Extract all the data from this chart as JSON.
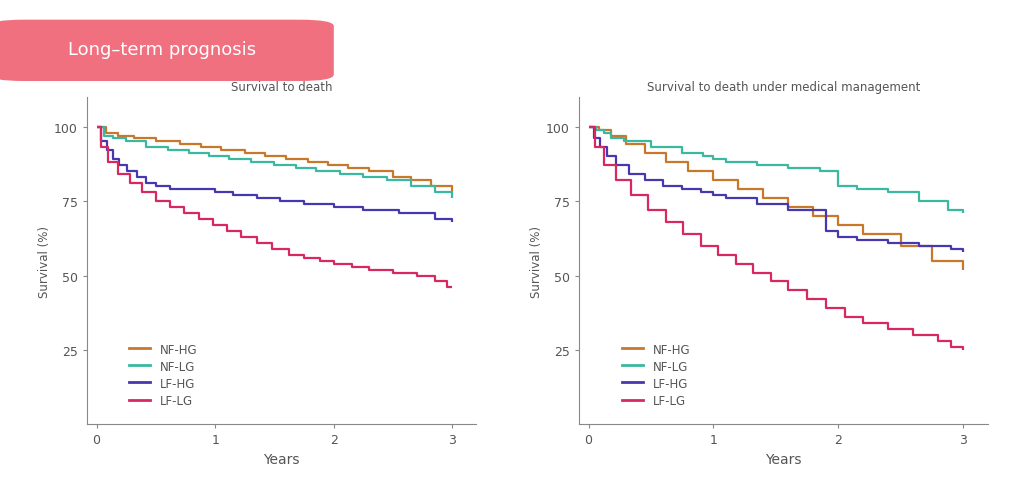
{
  "title_text": "Long–term prognosis",
  "title_bg_color": "#f07080",
  "title_text_color": "#ffffff",
  "background_color": "#ffffff",
  "chart1_title": "Survival to death",
  "chart2_title": "Survival to death under medical management",
  "xlabel": "Years",
  "ylabel": "Survival (%)",
  "colors": {
    "NF-HG": "#c8782a",
    "NF-LG": "#3ab8a0",
    "LF-HG": "#4838b0",
    "LF-LG": "#d82860"
  },
  "chart1": {
    "NF-HG": {
      "x": [
        0,
        0.08,
        0.18,
        0.32,
        0.5,
        0.7,
        0.88,
        1.05,
        1.25,
        1.42,
        1.6,
        1.78,
        1.95,
        2.12,
        2.3,
        2.5,
        2.65,
        2.82,
        3.0
      ],
      "y": [
        100,
        98,
        97,
        96,
        95,
        94,
        93,
        92,
        91,
        90,
        89,
        88,
        87,
        86,
        85,
        83,
        82,
        80,
        78
      ]
    },
    "NF-LG": {
      "x": [
        0,
        0.06,
        0.14,
        0.25,
        0.42,
        0.6,
        0.78,
        0.95,
        1.12,
        1.3,
        1.5,
        1.68,
        1.85,
        2.05,
        2.25,
        2.45,
        2.65,
        2.85,
        3.0
      ],
      "y": [
        100,
        97,
        96,
        95,
        93,
        92,
        91,
        90,
        89,
        88,
        87,
        86,
        85,
        84,
        83,
        82,
        80,
        78,
        76
      ]
    },
    "LF-HG": {
      "x": [
        0,
        0.04,
        0.09,
        0.14,
        0.19,
        0.26,
        0.34,
        0.42,
        0.5,
        0.62,
        1.0,
        1.15,
        1.35,
        1.55,
        1.75,
        2.0,
        2.25,
        2.55,
        2.85,
        3.0
      ],
      "y": [
        100,
        95,
        92,
        89,
        87,
        85,
        83,
        81,
        80,
        79,
        78,
        77,
        76,
        75,
        74,
        73,
        72,
        71,
        69,
        68
      ]
    },
    "LF-LG": {
      "x": [
        0,
        0.04,
        0.1,
        0.18,
        0.28,
        0.38,
        0.5,
        0.62,
        0.74,
        0.86,
        0.98,
        1.1,
        1.22,
        1.35,
        1.48,
        1.62,
        1.75,
        1.88,
        2.0,
        2.15,
        2.3,
        2.5,
        2.7,
        2.85,
        2.95,
        3.0
      ],
      "y": [
        100,
        93,
        88,
        84,
        81,
        78,
        75,
        73,
        71,
        69,
        67,
        65,
        63,
        61,
        59,
        57,
        56,
        55,
        54,
        53,
        52,
        51,
        50,
        48,
        46,
        46
      ]
    }
  },
  "chart2": {
    "NF-HG": {
      "x": [
        0,
        0.08,
        0.18,
        0.3,
        0.45,
        0.62,
        0.8,
        1.0,
        1.2,
        1.4,
        1.6,
        1.8,
        2.0,
        2.2,
        2.5,
        2.75,
        3.0
      ],
      "y": [
        100,
        99,
        97,
        94,
        91,
        88,
        85,
        82,
        79,
        76,
        73,
        70,
        67,
        64,
        60,
        55,
        52
      ]
    },
    "NF-LG": {
      "x": [
        0,
        0.06,
        0.12,
        0.18,
        0.28,
        0.5,
        0.75,
        0.92,
        1.0,
        1.1,
        1.35,
        1.6,
        1.85,
        2.0,
        2.15,
        2.4,
        2.65,
        2.88,
        3.0
      ],
      "y": [
        100,
        99,
        98,
        96,
        95,
        93,
        91,
        90,
        89,
        88,
        87,
        86,
        85,
        80,
        79,
        78,
        75,
        72,
        71
      ]
    },
    "LF-HG": {
      "x": [
        0,
        0.04,
        0.09,
        0.15,
        0.22,
        0.32,
        0.45,
        0.6,
        0.75,
        0.9,
        1.0,
        1.1,
        1.35,
        1.6,
        1.9,
        2.0,
        2.15,
        2.4,
        2.65,
        2.9,
        3.0
      ],
      "y": [
        100,
        96,
        93,
        90,
        87,
        84,
        82,
        80,
        79,
        78,
        77,
        76,
        74,
        72,
        65,
        63,
        62,
        61,
        60,
        59,
        58
      ]
    },
    "LF-LG": {
      "x": [
        0,
        0.05,
        0.12,
        0.22,
        0.34,
        0.48,
        0.62,
        0.76,
        0.9,
        1.04,
        1.18,
        1.32,
        1.46,
        1.6,
        1.75,
        1.9,
        2.05,
        2.2,
        2.4,
        2.6,
        2.8,
        2.9,
        3.0
      ],
      "y": [
        100,
        93,
        87,
        82,
        77,
        72,
        68,
        64,
        60,
        57,
        54,
        51,
        48,
        45,
        42,
        39,
        36,
        34,
        32,
        30,
        28,
        26,
        25
      ]
    }
  },
  "yticks": [
    25,
    50,
    75,
    100
  ],
  "xticks": [
    0,
    1,
    2,
    3
  ],
  "legend_order": [
    "NF-HG",
    "NF-LG",
    "LF-HG",
    "LF-LG"
  ]
}
